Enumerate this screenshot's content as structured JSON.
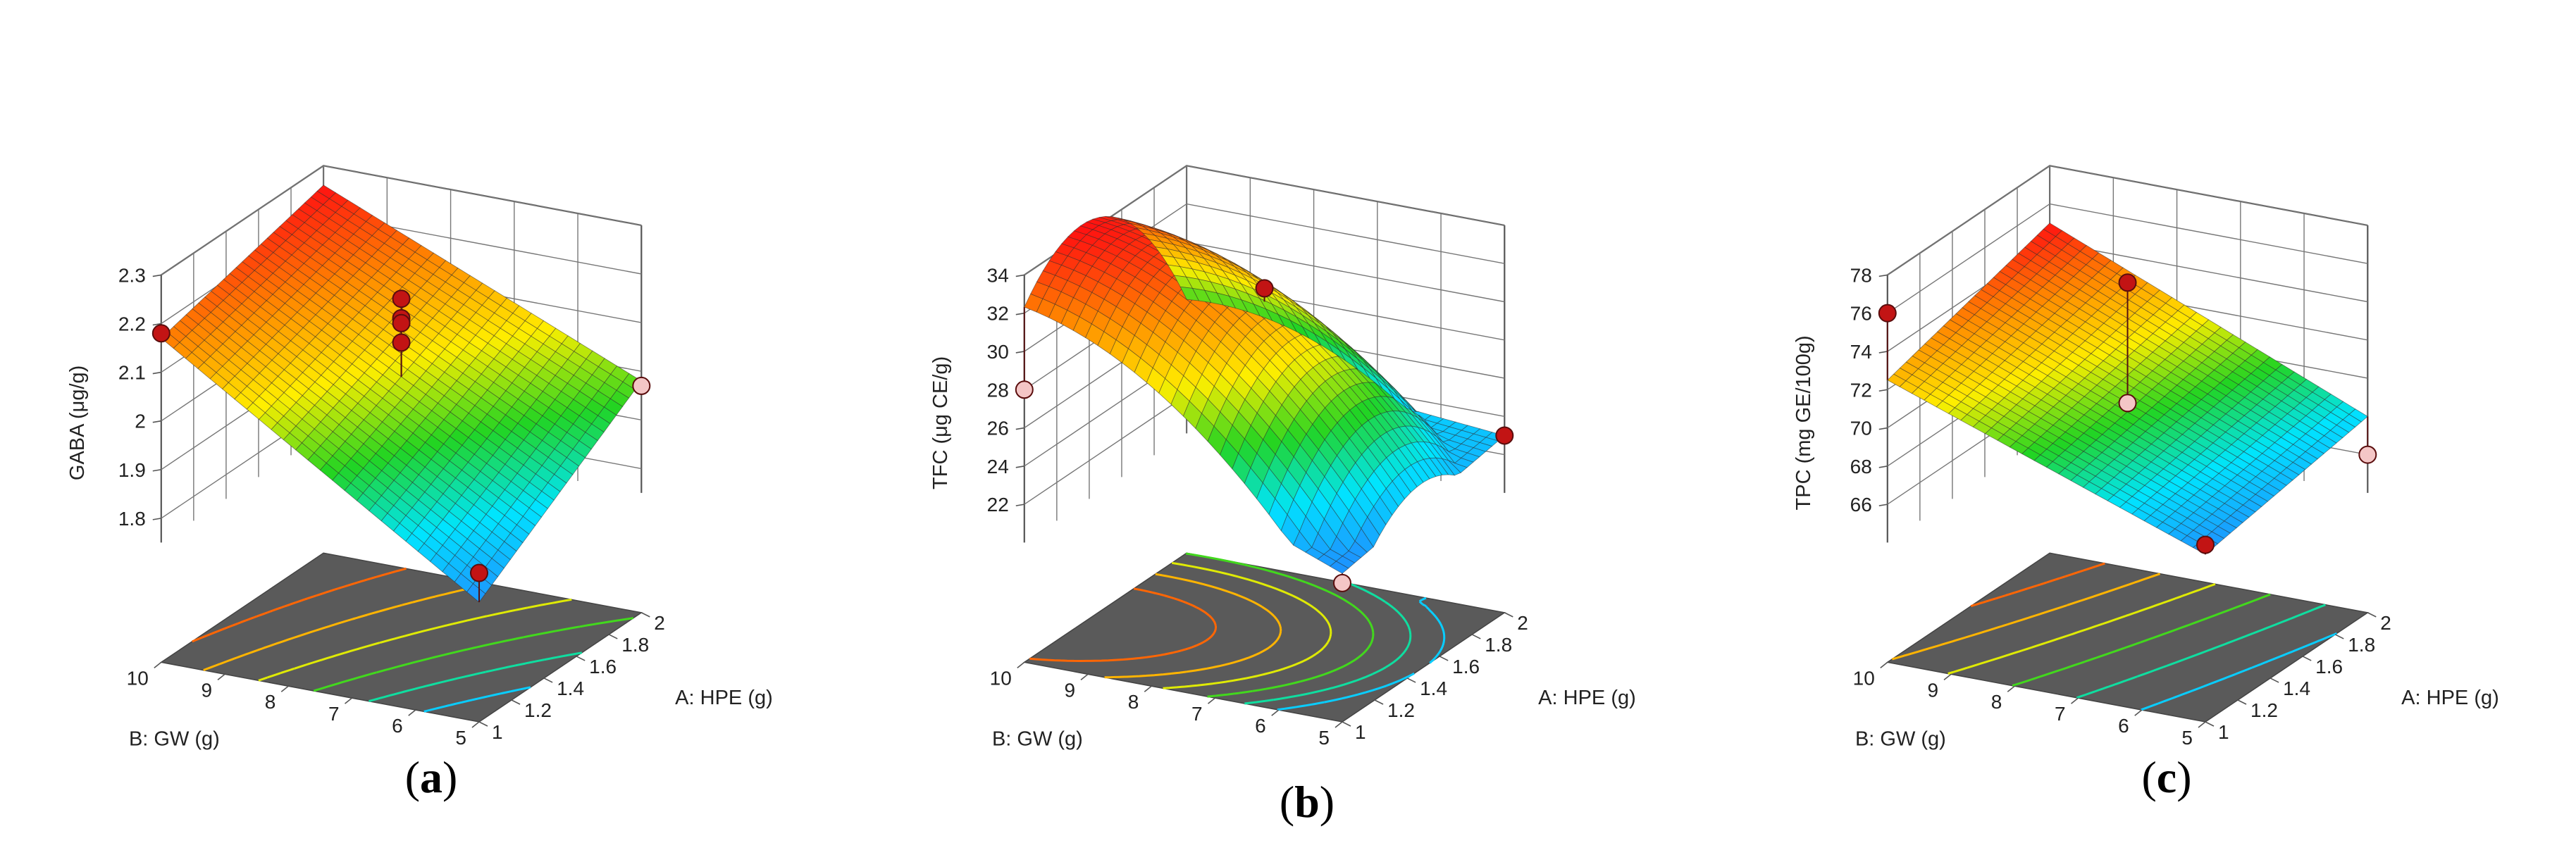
{
  "chart_data": [
    {
      "type": "surface",
      "panel_label": "(a)",
      "panel_letter": "a",
      "zlabel": "GABA (μg/g)",
      "xlabel": "A: HPE (g)",
      "ylabel": "B: GW (g)",
      "x_ticks": [
        "1",
        "1.2",
        "1.4",
        "1.6",
        "1.8",
        "2"
      ],
      "y_ticks": [
        "5",
        "6",
        "7",
        "8",
        "9",
        "10"
      ],
      "z_ticks": [
        "1.8",
        "1.9",
        "2",
        "2.1",
        "2.2",
        "2.3"
      ],
      "xlim": [
        1,
        2
      ],
      "ylim": [
        5,
        10
      ],
      "zlim": [
        1.75,
        2.3
      ],
      "surface": {
        "model": "linear",
        "z_at_x1_y5": 1.75,
        "z_at_x2_y5": 1.98,
        "z_at_x1_y10": 2.17,
        "z_at_x2_y10": 2.26
      },
      "design_points": [
        {
          "x": 1,
          "y": 10,
          "z": 2.18
        },
        {
          "x": 1.5,
          "y": 7.5,
          "z": 2.2
        },
        {
          "x": 1.5,
          "y": 7.5,
          "z": 2.16
        },
        {
          "x": 1.5,
          "y": 7.5,
          "z": 2.15
        },
        {
          "x": 1.5,
          "y": 7.5,
          "z": 2.11
        },
        {
          "x": 1,
          "y": 5,
          "z": 1.81
        },
        {
          "x": 2,
          "y": 5,
          "z": 1.97
        }
      ],
      "contour_levels": 6,
      "colormap": [
        "#1e90ff",
        "#00e5ff",
        "#22d422",
        "#ffee00",
        "#ff8800",
        "#ff1111"
      ],
      "grid": true
    },
    {
      "type": "surface",
      "panel_label": "(b)",
      "panel_letter": "b",
      "zlabel": "TFC (μg CE/g)",
      "xlabel": "A: HPE (g)",
      "ylabel": "B: GW (g)",
      "x_ticks": [
        "1",
        "1.2",
        "1.4",
        "1.6",
        "1.8",
        "2"
      ],
      "y_ticks": [
        "5",
        "6",
        "7",
        "8",
        "9",
        "10"
      ],
      "z_ticks": [
        "22",
        "24",
        "26",
        "28",
        "30",
        "32",
        "34"
      ],
      "xlim": [
        1,
        2
      ],
      "ylim": [
        5,
        10
      ],
      "zlim": [
        20,
        34
      ],
      "surface": {
        "model": "quadratic",
        "z_peak": 34,
        "x_peak": 1.45,
        "y_peak": 9.2,
        "z_at_x1_y5": 21.5,
        "z_at_x2_y5": 23,
        "z_at_x1_y10": 28,
        "z_at_x2_y10": 24.5
      },
      "design_points": [
        {
          "x": 1.5,
          "y": 7.5,
          "z": 32
        },
        {
          "x": 1,
          "y": 5,
          "z": 21
        },
        {
          "x": 1,
          "y": 10,
          "z": 28
        },
        {
          "x": 2,
          "y": 5,
          "z": 23
        }
      ],
      "contour_levels": 6,
      "colormap": [
        "#1e90ff",
        "#00e5ff",
        "#22d422",
        "#ffee00",
        "#ff8800",
        "#ff1111"
      ],
      "grid": true
    },
    {
      "type": "surface",
      "panel_label": "(c)",
      "panel_letter": "c",
      "zlabel": "TPC (mg GE/100g)",
      "xlabel": "A: HPE (g)",
      "ylabel": "B: GW (g)",
      "x_ticks": [
        "1",
        "1.2",
        "1.4",
        "1.6",
        "1.8",
        "2"
      ],
      "y_ticks": [
        "5",
        "6",
        "7",
        "8",
        "9",
        "10"
      ],
      "z_ticks": [
        "66",
        "68",
        "70",
        "72",
        "74",
        "76",
        "78"
      ],
      "xlim": [
        1,
        2
      ],
      "ylim": [
        5,
        10
      ],
      "zlim": [
        64,
        78
      ],
      "surface": {
        "model": "linear",
        "z_at_x1_y5": 66.5,
        "z_at_x2_y5": 68,
        "z_at_x1_y10": 72.5,
        "z_at_x2_y10": 75
      },
      "design_points": [
        {
          "x": 1,
          "y": 10,
          "z": 76
        },
        {
          "x": 1.5,
          "y": 7.5,
          "z": 76.3
        },
        {
          "x": 1.5,
          "y": 7.5,
          "z": 70
        },
        {
          "x": 1,
          "y": 5,
          "z": 67
        },
        {
          "x": 2,
          "y": 5,
          "z": 66
        }
      ],
      "contour_levels": 6,
      "colormap": [
        "#1e90ff",
        "#00e5ff",
        "#22d422",
        "#ffee00",
        "#ff8800",
        "#ff1111"
      ],
      "grid": true
    }
  ]
}
